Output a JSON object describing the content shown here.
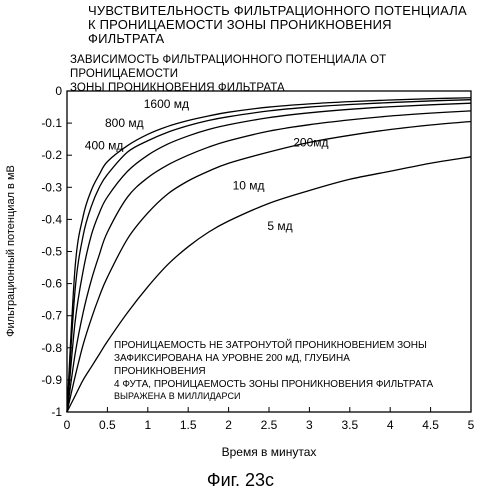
{
  "figure_title_lines": [
    "ЧУВСТВИТЕЛЬНОСТЬ ФИЛЬТРАЦИОННОГО ПОТЕНЦИАЛА",
    "К ПРОНИЦАЕМОСТИ ЗОНЫ  ПРОНИКНОВЕНИЯ",
    "ФИЛЬТРАТА"
  ],
  "figure_caption": "Фиг. 23с",
  "chart_data": {
    "type": "line",
    "title_lines": [
      "ЗАВИСИМОСТЬ ФИЛЬТРАЦИОННОГО ПОТЕНЦИАЛА ОТ ПРОНИЦАЕМОСТИ",
      "ЗОНЫ ПРОНИКНОВЕНИЯ ФИЛЬТРАТА"
    ],
    "xlabel": "Время в минутах",
    "ylabel": "Фильтрационный потенциал в мВ",
    "xlim": [
      0,
      5
    ],
    "ylim": [
      -1,
      0
    ],
    "xticks": [
      "0",
      "0.5",
      "1",
      "1.5",
      "2",
      "2.5",
      "3",
      "3.5",
      "4",
      "4.5",
      "5"
    ],
    "yticks": [
      "0",
      "-0.1",
      "-0.2",
      "-0.3",
      "-0.4",
      "-0.5",
      "-0.6",
      "-0.7",
      "-0.8",
      "-0.9",
      "-1"
    ],
    "grid": false,
    "annotation_lines": [
      "ПРОНИЦАЕМОСТЬ НЕ ЗАТРОНУТОЙ ПРОНИКНОВЕНИЕМ ЗОНЫ",
      "ЗАФИКСИРОВАНА НА УРОВНЕ 200 мД, ГЛУБИНА",
      "ПРОНИКНОВЕНИЯ",
      "4 ФУТА, ПРОНИЦАЕМОСТЬ ЗОНЫ ПРОНИКНОВЕНИЯ ФИЛЬТРАТА",
      "ВЫРАЖЕНА В МИЛЛИДАРСИ"
    ],
    "x": [
      0,
      0.1,
      0.2,
      0.3,
      0.4,
      0.5,
      0.75,
      1,
      1.25,
      1.5,
      1.75,
      2,
      2.5,
      3,
      3.5,
      4,
      4.5,
      5
    ],
    "series": [
      {
        "name": "1600 мд",
        "values": [
          -1,
          -0.55,
          -0.39,
          -0.31,
          -0.26,
          -0.22,
          -0.17,
          -0.135,
          -0.11,
          -0.092,
          -0.078,
          -0.066,
          -0.05,
          -0.04,
          -0.033,
          -0.028,
          -0.024,
          -0.021
        ]
      },
      {
        "name": "800 мд",
        "values": [
          -1,
          -0.62,
          -0.45,
          -0.36,
          -0.3,
          -0.26,
          -0.19,
          -0.155,
          -0.128,
          -0.108,
          -0.092,
          -0.08,
          -0.062,
          -0.05,
          -0.042,
          -0.036,
          -0.031,
          -0.027
        ]
      },
      {
        "name": "400 мд",
        "values": [
          -1,
          -0.72,
          -0.56,
          -0.45,
          -0.38,
          -0.33,
          -0.25,
          -0.2,
          -0.165,
          -0.14,
          -0.12,
          -0.105,
          -0.083,
          -0.068,
          -0.057,
          -0.049,
          -0.043,
          -0.038
        ]
      },
      {
        "name": "200мд",
        "values": [
          -1,
          -0.82,
          -0.69,
          -0.59,
          -0.51,
          -0.44,
          -0.33,
          -0.27,
          -0.23,
          -0.2,
          -0.175,
          -0.155,
          -0.125,
          -0.105,
          -0.09,
          -0.078,
          -0.069,
          -0.062
        ]
      },
      {
        "name": "10 мд",
        "values": [
          -1,
          -0.89,
          -0.79,
          -0.71,
          -0.64,
          -0.58,
          -0.46,
          -0.38,
          -0.32,
          -0.28,
          -0.25,
          -0.225,
          -0.19,
          -0.16,
          -0.138,
          -0.12,
          -0.106,
          -0.095
        ]
      },
      {
        "name": "5 мд",
        "values": [
          -1,
          -0.95,
          -0.9,
          -0.86,
          -0.82,
          -0.78,
          -0.69,
          -0.61,
          -0.54,
          -0.485,
          -0.44,
          -0.405,
          -0.35,
          -0.31,
          -0.275,
          -0.25,
          -0.225,
          -0.205
        ]
      }
    ],
    "series_labels": [
      {
        "text": "1600 мд",
        "x": 0.95,
        "y": -0.04
      },
      {
        "text": "800 мд",
        "x": 0.47,
        "y": -0.1
      },
      {
        "text": "400 мд",
        "x": 0.22,
        "y": -0.17
      },
      {
        "text": "200мд",
        "x": 2.8,
        "y": -0.16
      },
      {
        "text": "10 мд",
        "x": 2.05,
        "y": -0.295
      },
      {
        "text": "5 мд",
        "x": 2.48,
        "y": -0.42
      }
    ]
  }
}
